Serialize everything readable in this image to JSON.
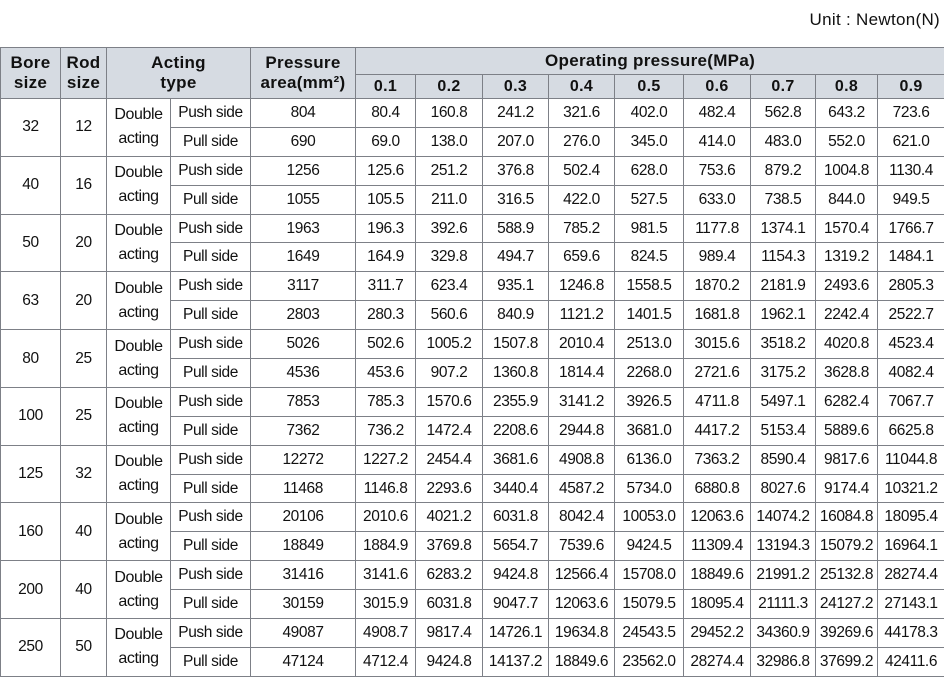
{
  "unit": "Unit : Newton(N)",
  "table": {
    "headers": {
      "bore": "Bore size",
      "rod": "Rod size",
      "acting": "Acting type",
      "area": "Pressure area(mm²)",
      "operating": "Operating pressure(MPa)",
      "pressures": [
        "0.1",
        "0.2",
        "0.3",
        "0.4",
        "0.5",
        "0.6",
        "0.7",
        "0.8",
        "0.9"
      ]
    },
    "groups": [
      {
        "bore": "32",
        "rod": "12",
        "acting": "Double acting",
        "rows": [
          {
            "side": "Push side",
            "area": "804",
            "forces": [
              "80.4",
              "160.8",
              "241.2",
              "321.6",
              "402.0",
              "482.4",
              "562.8",
              "643.2",
              "723.6"
            ]
          },
          {
            "side": "Pull side",
            "area": "690",
            "forces": [
              "69.0",
              "138.0",
              "207.0",
              "276.0",
              "345.0",
              "414.0",
              "483.0",
              "552.0",
              "621.0"
            ]
          }
        ]
      },
      {
        "bore": "40",
        "rod": "16",
        "acting": "Double acting",
        "rows": [
          {
            "side": "Push side",
            "area": "1256",
            "forces": [
              "125.6",
              "251.2",
              "376.8",
              "502.4",
              "628.0",
              "753.6",
              "879.2",
              "1004.8",
              "1130.4"
            ]
          },
          {
            "side": "Pull side",
            "area": "1055",
            "forces": [
              "105.5",
              "211.0",
              "316.5",
              "422.0",
              "527.5",
              "633.0",
              "738.5",
              "844.0",
              "949.5"
            ]
          }
        ]
      },
      {
        "bore": "50",
        "rod": "20",
        "acting": "Double acting",
        "rows": [
          {
            "side": "Push side",
            "area": "1963",
            "forces": [
              "196.3",
              "392.6",
              "588.9",
              "785.2",
              "981.5",
              "1177.8",
              "1374.1",
              "1570.4",
              "1766.7"
            ]
          },
          {
            "side": "Pull side",
            "area": "1649",
            "forces": [
              "164.9",
              "329.8",
              "494.7",
              "659.6",
              "824.5",
              "989.4",
              "1154.3",
              "1319.2",
              "1484.1"
            ]
          }
        ]
      },
      {
        "bore": "63",
        "rod": "20",
        "acting": "Double acting",
        "rows": [
          {
            "side": "Push side",
            "area": "3117",
            "forces": [
              "311.7",
              "623.4",
              "935.1",
              "1246.8",
              "1558.5",
              "1870.2",
              "2181.9",
              "2493.6",
              "2805.3"
            ]
          },
          {
            "side": "Pull side",
            "area": "2803",
            "forces": [
              "280.3",
              "560.6",
              "840.9",
              "1121.2",
              "1401.5",
              "1681.8",
              "1962.1",
              "2242.4",
              "2522.7"
            ]
          }
        ]
      },
      {
        "bore": "80",
        "rod": "25",
        "acting": "Double acting",
        "rows": [
          {
            "side": "Push side",
            "area": "5026",
            "forces": [
              "502.6",
              "1005.2",
              "1507.8",
              "2010.4",
              "2513.0",
              "3015.6",
              "3518.2",
              "4020.8",
              "4523.4"
            ]
          },
          {
            "side": "Pull side",
            "area": "4536",
            "forces": [
              "453.6",
              "907.2",
              "1360.8",
              "1814.4",
              "2268.0",
              "2721.6",
              "3175.2",
              "3628.8",
              "4082.4"
            ]
          }
        ]
      },
      {
        "bore": "100",
        "rod": "25",
        "acting": "Double acting",
        "rows": [
          {
            "side": "Push side",
            "area": "7853",
            "forces": [
              "785.3",
              "1570.6",
              "2355.9",
              "3141.2",
              "3926.5",
              "4711.8",
              "5497.1",
              "6282.4",
              "7067.7"
            ]
          },
          {
            "side": "Pull side",
            "area": "7362",
            "forces": [
              "736.2",
              "1472.4",
              "2208.6",
              "2944.8",
              "3681.0",
              "4417.2",
              "5153.4",
              "5889.6",
              "6625.8"
            ]
          }
        ]
      },
      {
        "bore": "125",
        "rod": "32",
        "acting": "Double acting",
        "rows": [
          {
            "side": "Push side",
            "area": "12272",
            "forces": [
              "1227.2",
              "2454.4",
              "3681.6",
              "4908.8",
              "6136.0",
              "7363.2",
              "8590.4",
              "9817.6",
              "11044.8"
            ]
          },
          {
            "side": "Pull side",
            "area": "11468",
            "forces": [
              "1146.8",
              "2293.6",
              "3440.4",
              "4587.2",
              "5734.0",
              "6880.8",
              "8027.6",
              "9174.4",
              "10321.2"
            ]
          }
        ]
      },
      {
        "bore": "160",
        "rod": "40",
        "acting": "Double acting",
        "rows": [
          {
            "side": "Push side",
            "area": "20106",
            "forces": [
              "2010.6",
              "4021.2",
              "6031.8",
              "8042.4",
              "10053.0",
              "12063.6",
              "14074.2",
              "16084.8",
              "18095.4"
            ]
          },
          {
            "side": "Pull side",
            "area": "18849",
            "forces": [
              "1884.9",
              "3769.8",
              "5654.7",
              "7539.6",
              "9424.5",
              "11309.4",
              "13194.3",
              "15079.2",
              "16964.1"
            ]
          }
        ]
      },
      {
        "bore": "200",
        "rod": "40",
        "acting": "Double acting",
        "rows": [
          {
            "side": "Push side",
            "area": "31416",
            "forces": [
              "3141.6",
              "6283.2",
              "9424.8",
              "12566.4",
              "15708.0",
              "18849.6",
              "21991.2",
              "25132.8",
              "28274.4"
            ]
          },
          {
            "side": "Pull side",
            "area": "30159",
            "forces": [
              "3015.9",
              "6031.8",
              "9047.7",
              "12063.6",
              "15079.5",
              "18095.4",
              "21111.3",
              "24127.2",
              "27143.1"
            ]
          }
        ]
      },
      {
        "bore": "250",
        "rod": "50",
        "acting": "Double acting",
        "rows": [
          {
            "side": "Push side",
            "area": "49087",
            "forces": [
              "4908.7",
              "9817.4",
              "14726.1",
              "19634.8",
              "24543.5",
              "29452.2",
              "34360.9",
              "39269.6",
              "44178.3"
            ]
          },
          {
            "side": "Pull side",
            "area": "47124",
            "forces": [
              "4712.4",
              "9424.8",
              "14137.2",
              "18849.6",
              "23562.0",
              "28274.4",
              "32986.8",
              "37699.2",
              "42411.6"
            ]
          }
        ]
      }
    ]
  }
}
